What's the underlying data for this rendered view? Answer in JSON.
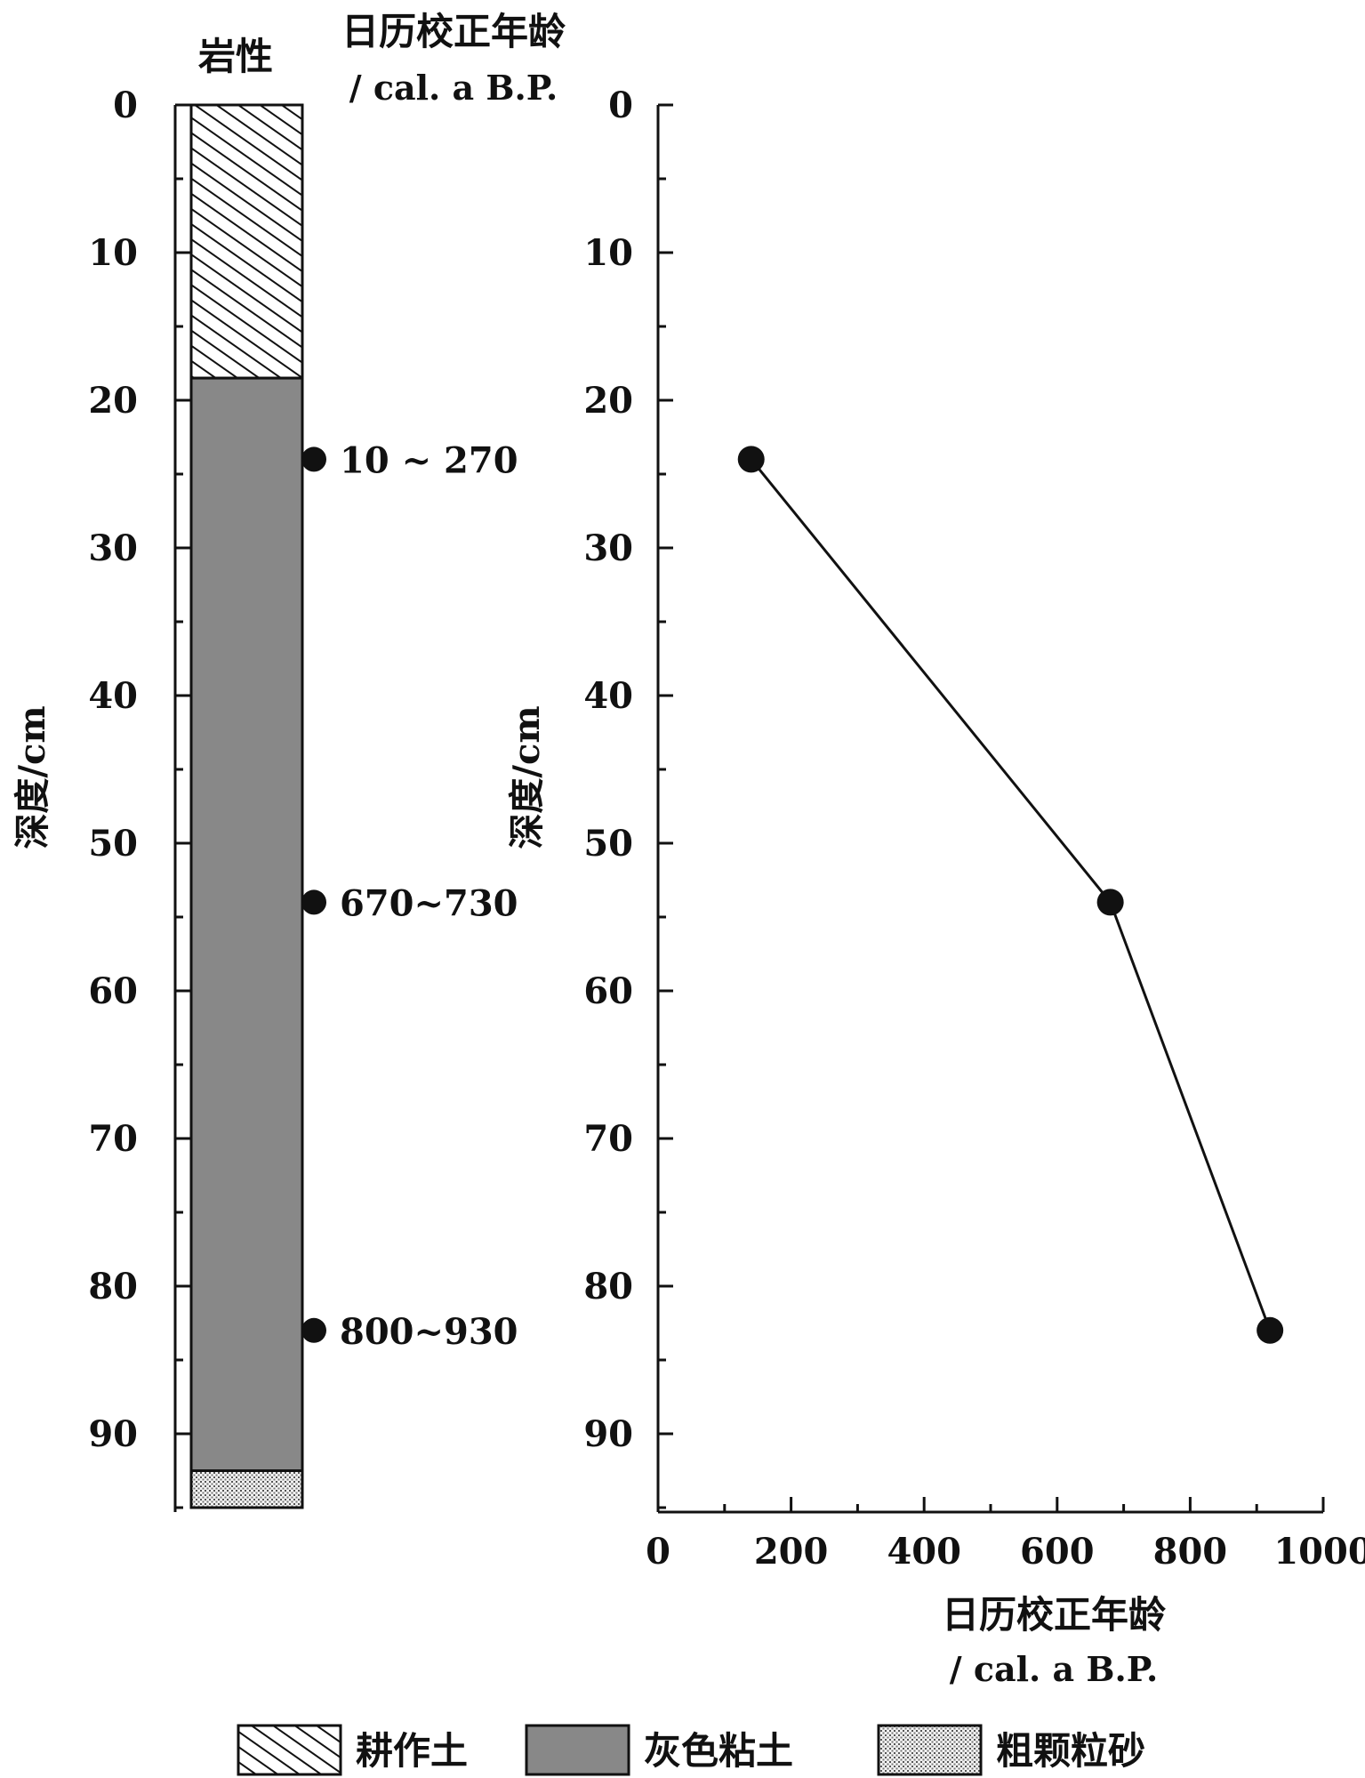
{
  "left_panel": {
    "lithology_header": "岩性",
    "age_header_line1": "日历校正年龄",
    "age_header_line2": "/ cal. a B.P.",
    "depth_label": "深度/cm",
    "depth_ticks": [
      "0",
      "10",
      "20",
      "30",
      "40",
      "50",
      "60",
      "70",
      "80",
      "90"
    ],
    "layers": [
      {
        "name": "耕作土",
        "from": 0,
        "to": 18.5,
        "pattern": "hatch"
      },
      {
        "name": "灰色粘土",
        "from": 18.5,
        "to": 92.5,
        "color": "#888888"
      },
      {
        "name": "粗颗粒砂",
        "from": 92.5,
        "to": 95,
        "pattern": "dots"
      }
    ],
    "samples": [
      {
        "depth": 24,
        "label": "10 ~ 270"
      },
      {
        "depth": 54,
        "label": "670~730"
      },
      {
        "depth": 83,
        "label": "800~930"
      }
    ]
  },
  "chart_data": {
    "type": "line",
    "xlabel_line1": "日历校正年龄",
    "xlabel_line2": "/ cal. a B.P.",
    "ylabel": "深度/cm",
    "xlim": [
      0,
      1000
    ],
    "ylim": [
      0,
      95
    ],
    "y_inverted": true,
    "x_ticks": [
      0,
      200,
      400,
      600,
      800,
      1000
    ],
    "y_ticks": [
      0,
      10,
      20,
      30,
      40,
      50,
      60,
      70,
      80,
      90
    ],
    "points": [
      {
        "x": 140,
        "y": 24
      },
      {
        "x": 680,
        "y": 54
      },
      {
        "x": 920,
        "y": 83
      }
    ],
    "line_color": "#111111",
    "marker_color": "#111111"
  },
  "legend": {
    "items": [
      {
        "label": "耕作土",
        "pattern": "hatch"
      },
      {
        "label": "灰色粘土",
        "color": "#888888"
      },
      {
        "label": "粗颗粒砂",
        "pattern": "dots"
      }
    ]
  }
}
